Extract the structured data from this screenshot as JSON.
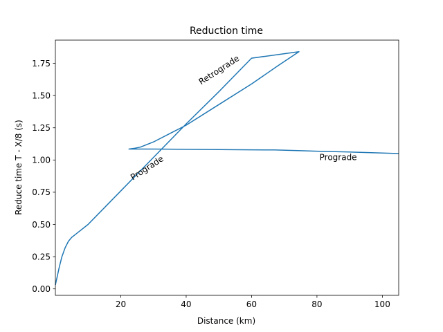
{
  "chart_data": {
    "type": "line",
    "title": "Reduction time",
    "xlabel": "Distance (km)",
    "ylabel": "Reduce time T - X/8 (s)",
    "xlim": [
      0,
      105
    ],
    "ylim": [
      -0.05,
      1.93
    ],
    "xticks": [
      {
        "value": 20,
        "label": "20"
      },
      {
        "value": 40,
        "label": "40"
      },
      {
        "value": 60,
        "label": "60"
      },
      {
        "value": 80,
        "label": "80"
      },
      {
        "value": 100,
        "label": "100"
      }
    ],
    "yticks": [
      {
        "value": 0.0,
        "label": "0.00"
      },
      {
        "value": 0.25,
        "label": "0.25"
      },
      {
        "value": 0.5,
        "label": "0.50"
      },
      {
        "value": 0.75,
        "label": "0.75"
      },
      {
        "value": 1.0,
        "label": "1.00"
      },
      {
        "value": 1.25,
        "label": "1.25"
      },
      {
        "value": 1.5,
        "label": "1.50"
      },
      {
        "value": 1.75,
        "label": "1.75"
      }
    ],
    "grid": false,
    "color": "#1f77b4",
    "series": [
      {
        "points": [
          [
            0.0,
            0.03
          ],
          [
            0.6,
            0.1
          ],
          [
            1.2,
            0.17
          ],
          [
            2.0,
            0.25
          ],
          [
            3.0,
            0.32
          ],
          [
            4.0,
            0.37
          ],
          [
            5.0,
            0.4
          ],
          [
            6.0,
            0.42
          ],
          [
            7.0,
            0.44
          ],
          [
            10.0,
            0.5
          ],
          [
            20.0,
            0.76
          ],
          [
            30.0,
            1.02
          ],
          [
            40.0,
            1.28
          ],
          [
            50.0,
            1.53
          ],
          [
            60.0,
            1.79
          ],
          [
            74.5,
            1.84
          ],
          [
            68.0,
            1.73
          ],
          [
            60.0,
            1.59
          ],
          [
            50.0,
            1.43
          ],
          [
            40.0,
            1.27
          ],
          [
            30.0,
            1.14
          ],
          [
            26.0,
            1.1
          ],
          [
            24.0,
            1.09
          ],
          [
            22.5,
            1.085
          ],
          [
            30.0,
            1.085
          ],
          [
            40.0,
            1.083
          ],
          [
            50.0,
            1.081
          ],
          [
            60.0,
            1.079
          ],
          [
            67.0,
            1.078
          ],
          [
            75.0,
            1.072
          ],
          [
            80.0,
            1.068
          ],
          [
            90.0,
            1.062
          ],
          [
            100.0,
            1.054
          ],
          [
            105.0,
            1.05
          ]
        ]
      }
    ],
    "annotations": [
      {
        "text": "Retrograde",
        "x": 50.5,
        "y": 1.68,
        "rotation": -33
      },
      {
        "text": "Prograde",
        "x": 28.5,
        "y": 0.92,
        "rotation": -33
      },
      {
        "text": "Prograde",
        "x": 86.5,
        "y": 1.0,
        "rotation": 0
      }
    ]
  }
}
